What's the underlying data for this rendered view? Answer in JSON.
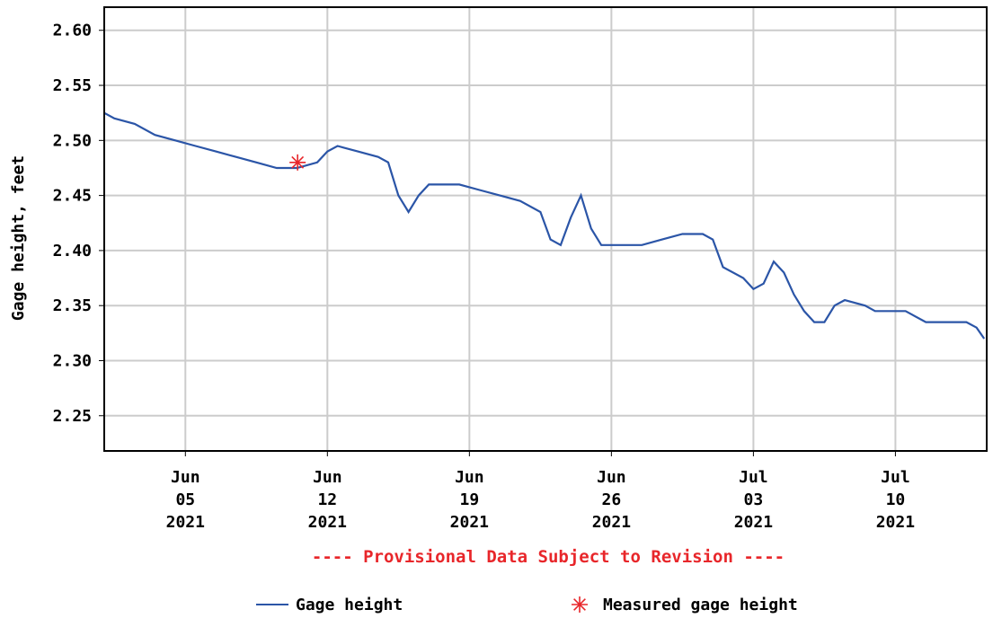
{
  "chart_data": {
    "type": "line",
    "y_label": "Gage height, feet",
    "note": "---- Provisional Data Subject to Revision ----",
    "legend": "bottom",
    "grid": true,
    "xlim": [
      "2021-06-01T00:00",
      "2021-07-14T12:00"
    ],
    "xticks": [
      {
        "value": "2021-06-05",
        "label": "Jun 05 2021"
      },
      {
        "value": "2021-06-12",
        "label": "Jun 12 2021"
      },
      {
        "value": "2021-06-19",
        "label": "Jun 19 2021"
      },
      {
        "value": "2021-06-26",
        "label": "Jun 26 2021"
      },
      {
        "value": "2021-07-03",
        "label": "Jul 03 2021"
      },
      {
        "value": "2021-07-10",
        "label": "Jul 10 2021"
      }
    ],
    "ylim": [
      2.218,
      2.621
    ],
    "yticks": [
      {
        "value": 2.25,
        "label": "2.25"
      },
      {
        "value": 2.3,
        "label": "2.30"
      },
      {
        "value": 2.35,
        "label": "2.35"
      },
      {
        "value": 2.4,
        "label": "2.40"
      },
      {
        "value": 2.45,
        "label": "2.45"
      },
      {
        "value": 2.5,
        "label": "2.50"
      },
      {
        "value": 2.55,
        "label": "2.55"
      },
      {
        "value": 2.6,
        "label": "2.60"
      }
    ],
    "series": [
      {
        "name": "Gage height",
        "color": "#2b55a7",
        "marker": "line",
        "x": [
          "2021-06-01T00:00",
          "2021-06-01T12:00",
          "2021-06-02T12:00",
          "2021-06-03T12:00",
          "2021-06-04T12:00",
          "2021-06-05T12:00",
          "2021-06-06T12:00",
          "2021-06-07T12:00",
          "2021-06-08T12:00",
          "2021-06-09T12:00",
          "2021-06-10T12:00",
          "2021-06-11T12:00",
          "2021-06-12T00:00",
          "2021-06-12T12:00",
          "2021-06-13T12:00",
          "2021-06-14T12:00",
          "2021-06-15T00:00",
          "2021-06-15T12:00",
          "2021-06-16T00:00",
          "2021-06-16T12:00",
          "2021-06-17T00:00",
          "2021-06-18T12:00",
          "2021-06-19T12:00",
          "2021-06-20T12:00",
          "2021-06-21T12:00",
          "2021-06-22T12:00",
          "2021-06-23T00:00",
          "2021-06-23T12:00",
          "2021-06-24T00:00",
          "2021-06-24T12:00",
          "2021-06-25T00:00",
          "2021-06-25T12:00",
          "2021-06-26T12:00",
          "2021-06-27T12:00",
          "2021-06-28T12:00",
          "2021-06-29T12:00",
          "2021-06-30T12:00",
          "2021-07-01T00:00",
          "2021-07-01T12:00",
          "2021-07-02T12:00",
          "2021-07-03T00:00",
          "2021-07-03T12:00",
          "2021-07-04T00:00",
          "2021-07-04T12:00",
          "2021-07-05T00:00",
          "2021-07-05T12:00",
          "2021-07-06T00:00",
          "2021-07-06T12:00",
          "2021-07-07T00:00",
          "2021-07-07T12:00",
          "2021-07-08T12:00",
          "2021-07-09T00:00",
          "2021-07-10T12:00",
          "2021-07-11T12:00",
          "2021-07-12T12:00",
          "2021-07-13T12:00",
          "2021-07-14T00:00",
          "2021-07-14T09:00"
        ],
        "values": [
          2.525,
          2.52,
          2.515,
          2.505,
          2.5,
          2.495,
          2.49,
          2.485,
          2.48,
          2.475,
          2.475,
          2.48,
          2.49,
          2.495,
          2.49,
          2.485,
          2.48,
          2.45,
          2.435,
          2.45,
          2.46,
          2.46,
          2.455,
          2.45,
          2.445,
          2.435,
          2.41,
          2.405,
          2.43,
          2.45,
          2.42,
          2.405,
          2.405,
          2.405,
          2.41,
          2.415,
          2.415,
          2.41,
          2.385,
          2.375,
          2.365,
          2.37,
          2.39,
          2.38,
          2.36,
          2.345,
          2.335,
          2.335,
          2.35,
          2.355,
          2.35,
          2.345,
          2.345,
          2.335,
          2.335,
          2.335,
          2.33,
          2.32
        ]
      },
      {
        "name": "Measured gage height",
        "color": "#e8262a",
        "marker": "asterisk",
        "x": [
          "2021-06-10T12:45"
        ],
        "values": [
          2.48
        ]
      }
    ]
  }
}
